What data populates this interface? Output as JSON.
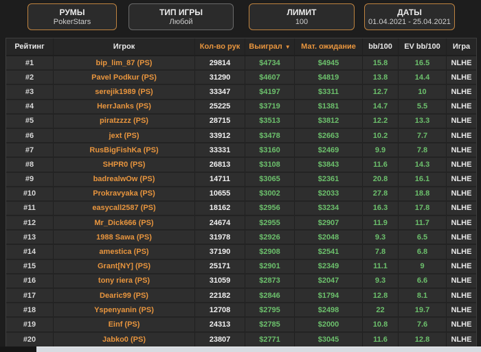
{
  "filters": [
    {
      "label": "РУМЫ",
      "value": "PokerStars",
      "highlighted": true
    },
    {
      "label": "ТИП ИГРЫ",
      "value": "Любой",
      "highlighted": false
    },
    {
      "label": "ЛИМИТ",
      "value": "100",
      "highlighted": true
    },
    {
      "label": "ДАТЫ",
      "value": "01.04.2021 - 25.04.2021",
      "highlighted": true
    }
  ],
  "table": {
    "columns": [
      {
        "key": "rank",
        "label": "Рейтинг",
        "accent": false,
        "cellType": "rank"
      },
      {
        "key": "player",
        "label": "Игрок",
        "accent": false,
        "cellType": "player"
      },
      {
        "key": "hands",
        "label": "Кол-во рук",
        "accent": true,
        "cellType": "hands"
      },
      {
        "key": "won",
        "label": "Выиграл",
        "accent": true,
        "sorted": "desc",
        "cellType": "money"
      },
      {
        "key": "ev",
        "label": "Мат. ожидание",
        "accent": true,
        "cellType": "money"
      },
      {
        "key": "bb100",
        "label": "bb/100",
        "accent": false,
        "cellType": "stat"
      },
      {
        "key": "evbb100",
        "label": "EV bb/100",
        "accent": false,
        "cellType": "stat"
      },
      {
        "key": "game",
        "label": "Игра",
        "accent": false,
        "cellType": "game"
      }
    ],
    "sort_arrow": "▼",
    "rows": [
      [
        "#1",
        "bip_lim_87 (PS)",
        "29814",
        "$4734",
        "$4945",
        "15.8",
        "16.5",
        "NLHE"
      ],
      [
        "#2",
        "Pavel Podkur (PS)",
        "31290",
        "$4607",
        "$4819",
        "13.8",
        "14.4",
        "NLHE"
      ],
      [
        "#3",
        "serejik1989 (PS)",
        "33347",
        "$4197",
        "$3311",
        "12.7",
        "10",
        "NLHE"
      ],
      [
        "#4",
        "HerrJanks (PS)",
        "25225",
        "$3719",
        "$1381",
        "14.7",
        "5.5",
        "NLHE"
      ],
      [
        "#5",
        "piratzzzz (PS)",
        "28715",
        "$3513",
        "$3812",
        "12.2",
        "13.3",
        "NLHE"
      ],
      [
        "#6",
        "jext (PS)",
        "33912",
        "$3478",
        "$2663",
        "10.2",
        "7.7",
        "NLHE"
      ],
      [
        "#7",
        "RusBigFishKa (PS)",
        "33331",
        "$3160",
        "$2469",
        "9.9",
        "7.8",
        "NLHE"
      ],
      [
        "#8",
        "SHPR0 (PS)",
        "26813",
        "$3108",
        "$3843",
        "11.6",
        "14.3",
        "NLHE"
      ],
      [
        "#9",
        "badrealwOw (PS)",
        "14711",
        "$3065",
        "$2361",
        "20.8",
        "16.1",
        "NLHE"
      ],
      [
        "#10",
        "Prokravyaka (PS)",
        "10655",
        "$3002",
        "$2033",
        "27.8",
        "18.8",
        "NLHE"
      ],
      [
        "#11",
        "easycall2587 (PS)",
        "18162",
        "$2956",
        "$3234",
        "16.3",
        "17.8",
        "NLHE"
      ],
      [
        "#12",
        "Mr_Dick666 (PS)",
        "24674",
        "$2955",
        "$2907",
        "11.9",
        "11.7",
        "NLHE"
      ],
      [
        "#13",
        "1988 Sawa (PS)",
        "31978",
        "$2926",
        "$2048",
        "9.3",
        "6.5",
        "NLHE"
      ],
      [
        "#14",
        "amestica (PS)",
        "37190",
        "$2908",
        "$2541",
        "7.8",
        "6.8",
        "NLHE"
      ],
      [
        "#15",
        "Grant[NY] (PS)",
        "25171",
        "$2901",
        "$2349",
        "11.1",
        "9",
        "NLHE"
      ],
      [
        "#16",
        "tony riera (PS)",
        "31059",
        "$2873",
        "$2047",
        "9.3",
        "6.6",
        "NLHE"
      ],
      [
        "#17",
        "Dearic99 (PS)",
        "22182",
        "$2846",
        "$1794",
        "12.8",
        "8.1",
        "NLHE"
      ],
      [
        "#18",
        "Yspenyanin (PS)",
        "12708",
        "$2795",
        "$2498",
        "22",
        "19.7",
        "NLHE"
      ],
      [
        "#19",
        "Einf (PS)",
        "24313",
        "$2785",
        "$2000",
        "10.8",
        "7.6",
        "NLHE"
      ],
      [
        "#20",
        "Jabko0 (PS)",
        "23807",
        "$2771",
        "$3045",
        "11.6",
        "12.8",
        "NLHE"
      ]
    ]
  },
  "colors": {
    "accent_orange": "#e8953e",
    "border_orange": "#c08440",
    "value_green": "#6cc06c",
    "row_bg": "#2e2e2e",
    "header_bg": "#262626",
    "page_bg": "#1d1d1d"
  }
}
